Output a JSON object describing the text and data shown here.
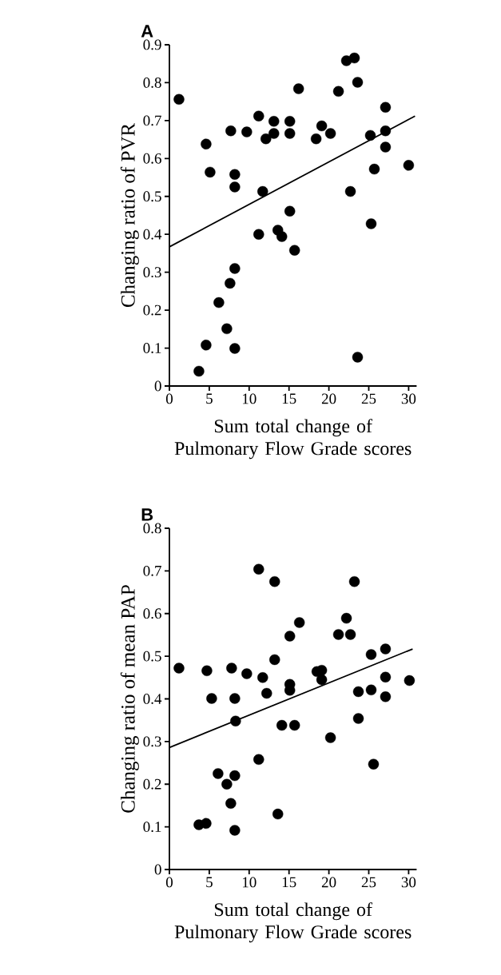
{
  "chart_data": [
    {
      "type": "scatter",
      "title": "A",
      "xlabel": "Sum total change of Pulmonary Flow Grade scores",
      "ylabel": "Changing ratio of PVR",
      "xlim": [
        0,
        31
      ],
      "ylim": [
        0,
        0.9
      ],
      "xticks": [
        0,
        5,
        10,
        15,
        20,
        25,
        30
      ],
      "yticks": [
        0,
        0.1,
        0.2,
        0.3,
        0.4,
        0.5,
        0.6,
        0.7,
        0.8,
        0.9
      ],
      "series": [
        {
          "marker": "circle",
          "color": "#000000",
          "x": [
            1.2,
            4.6,
            5.1,
            7.7,
            8.2,
            8.2,
            9.7,
            11.2,
            11.7,
            12.1,
            13.1,
            13.1,
            15.1,
            15.1,
            16.2,
            18.4,
            19.1,
            20.2,
            21.2,
            22.2,
            23.2,
            22.7,
            23.6,
            25.2,
            25.7,
            27.1,
            27.1,
            27.1,
            30.0,
            15.1,
            11.2,
            13.6,
            14.1,
            15.7,
            25.3,
            8.2,
            7.6,
            6.2,
            7.2,
            8.2,
            4.6,
            3.7,
            23.6
          ],
          "values": [
            0.756,
            0.638,
            0.564,
            0.673,
            0.558,
            0.525,
            0.67,
            0.712,
            0.513,
            0.652,
            0.698,
            0.666,
            0.698,
            0.666,
            0.784,
            0.652,
            0.686,
            0.666,
            0.777,
            0.858,
            0.865,
            0.513,
            0.801,
            0.661,
            0.572,
            0.735,
            0.673,
            0.63,
            0.582,
            0.461,
            0.4,
            0.411,
            0.394,
            0.358,
            0.428,
            0.31,
            0.271,
            0.22,
            0.151,
            0.099,
            0.108,
            0.039,
            0.076
          ]
        },
        {
          "type": "line",
          "marker": "none",
          "color": "#000000",
          "x": [
            0,
            30.8
          ],
          "values": [
            0.367,
            0.712
          ]
        }
      ]
    },
    {
      "type": "scatter",
      "title": "B",
      "xlabel": "Sum total change of Pulmonary Flow Grade scores",
      "ylabel": "Changing ratio of mean PAP",
      "xlim": [
        0,
        31
      ],
      "ylim": [
        0,
        0.8
      ],
      "xticks": [
        0,
        5,
        10,
        15,
        20,
        25,
        30
      ],
      "yticks": [
        0,
        0.1,
        0.2,
        0.3,
        0.4,
        0.5,
        0.6,
        0.7,
        0.8
      ],
      "series": [
        {
          "marker": "circle",
          "color": "#000000",
          "x": [
            1.2,
            4.7,
            5.3,
            7.8,
            8.2,
            8.3,
            9.7,
            11.2,
            11.7,
            12.2,
            13.2,
            13.2,
            14.1,
            15.1,
            15.1,
            15.1,
            15.7,
            16.3,
            18.5,
            19.1,
            19.1,
            20.2,
            21.2,
            22.2,
            22.7,
            23.2,
            23.7,
            23.7,
            25.3,
            25.3,
            27.1,
            27.1,
            27.1,
            30.1,
            6.1,
            7.2,
            7.7,
            8.2,
            3.7,
            4.6,
            8.2,
            11.2,
            13.6,
            25.6
          ],
          "values": [
            0.472,
            0.466,
            0.401,
            0.472,
            0.401,
            0.348,
            0.459,
            0.704,
            0.45,
            0.413,
            0.675,
            0.492,
            0.338,
            0.547,
            0.434,
            0.42,
            0.338,
            0.579,
            0.464,
            0.467,
            0.445,
            0.309,
            0.551,
            0.589,
            0.551,
            0.675,
            0.417,
            0.354,
            0.421,
            0.504,
            0.517,
            0.451,
            0.405,
            0.443,
            0.225,
            0.2,
            0.155,
            0.22,
            0.105,
            0.108,
            0.092,
            0.258,
            0.13,
            0.247
          ]
        },
        {
          "type": "line",
          "marker": "none",
          "color": "#000000",
          "x": [
            0,
            30.5
          ],
          "values": [
            0.286,
            0.517
          ]
        }
      ]
    }
  ]
}
